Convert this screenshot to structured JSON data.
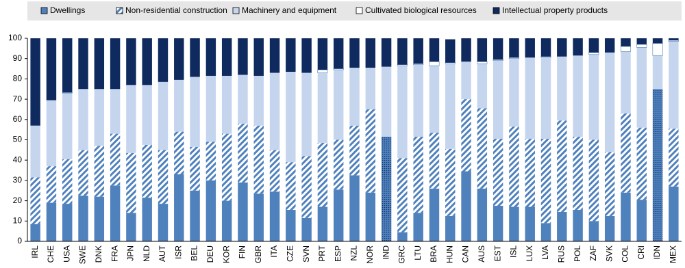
{
  "chart_data": {
    "type": "stacked_bar",
    "categories": [
      "IRL",
      "CHE",
      "USA",
      "SWE",
      "DNK",
      "FRA",
      "JPN",
      "NLD",
      "AUT",
      "ISR",
      "BEL",
      "DEU",
      "KOR",
      "FIN",
      "GBR",
      "ITA",
      "CZE",
      "SVN",
      "PRT",
      "ESP",
      "NZL",
      "NOR",
      "IND",
      "GRC",
      "LTU",
      "BRA",
      "HUN",
      "CAN",
      "AUS",
      "EST",
      "ISL",
      "LUX",
      "LVA",
      "RUS",
      "POL",
      "ZAF",
      "SVK",
      "COL",
      "CRI",
      "IDN",
      "MEX"
    ],
    "series": [
      {
        "name": "Dwellings",
        "color": "#4f81bd",
        "values": [
          8.5,
          19,
          18.5,
          22.5,
          22,
          27.5,
          14,
          21.5,
          18.5,
          33,
          25,
          30,
          20,
          29,
          23.5,
          24.5,
          15.5,
          11.5,
          17,
          25.5,
          32.5,
          24,
          51.5,
          4.5,
          14,
          26,
          12.5,
          34.5,
          26,
          17.5,
          17,
          17,
          9,
          14.5,
          15.5,
          10,
          12.5,
          24,
          20.5,
          75,
          27
        ]
      },
      {
        "name": "Non-residential construction",
        "color": "#4f81bd",
        "pattern": "hatch",
        "values": [
          23,
          18,
          22,
          22.5,
          25,
          25.5,
          29.5,
          26,
          26.5,
          21,
          21.5,
          19,
          33,
          29,
          33.5,
          20.5,
          23.5,
          30.5,
          31.5,
          24.5,
          24.5,
          41,
          0,
          36.5,
          37.5,
          27.5,
          33,
          35.5,
          39.5,
          33,
          39.5,
          33.5,
          41.5,
          45,
          36,
          40,
          31.5,
          39,
          35.5,
          0,
          28.5
        ]
      },
      {
        "name": "Machinery and equipment",
        "color": "#c6d5ee",
        "values": [
          25.5,
          32.5,
          32.5,
          30,
          28,
          22,
          33.5,
          29.5,
          33.5,
          25.5,
          34.5,
          32.5,
          28.5,
          24,
          24.5,
          38,
          44.5,
          41,
          34.5,
          34.5,
          28.5,
          20.5,
          34.5,
          45.5,
          35.5,
          33,
          42,
          18.5,
          22,
          38.5,
          33.5,
          40,
          40,
          31.5,
          40,
          42,
          49,
          30.5,
          39.5,
          16.5,
          43
        ]
      },
      {
        "name": "Cultivated biological resources",
        "color": "#ffffff",
        "values": [
          0,
          0,
          0.3,
          0,
          0,
          0,
          0,
          0,
          0,
          0,
          0,
          0,
          0,
          0,
          0,
          0,
          0,
          0,
          1.5,
          0.5,
          0,
          0,
          0,
          0.5,
          0.5,
          2,
          0.5,
          0,
          1,
          0.5,
          0.5,
          0,
          0.5,
          0,
          0,
          1,
          0,
          2.5,
          1.5,
          6,
          0.5
        ]
      },
      {
        "name": "Intellectual property products",
        "color": "#0f2a5e",
        "values": [
          43,
          30.5,
          26.7,
          25,
          25,
          25,
          23,
          23,
          21.5,
          20.5,
          19,
          18.5,
          18.5,
          18,
          18.5,
          17,
          16.5,
          17,
          15.5,
          15,
          14.5,
          14.5,
          14,
          13,
          12.5,
          11.5,
          11.5,
          11.5,
          11.5,
          10.5,
          9.5,
          9.5,
          9,
          9,
          8.5,
          7,
          7,
          4,
          3,
          2.5,
          1
        ]
      }
    ],
    "combined_construction_indices": [
      22,
      39
    ],
    "ylim": [
      0,
      100
    ],
    "yticks": [
      0,
      10,
      20,
      30,
      40,
      50,
      60,
      70,
      80,
      90,
      100
    ]
  }
}
